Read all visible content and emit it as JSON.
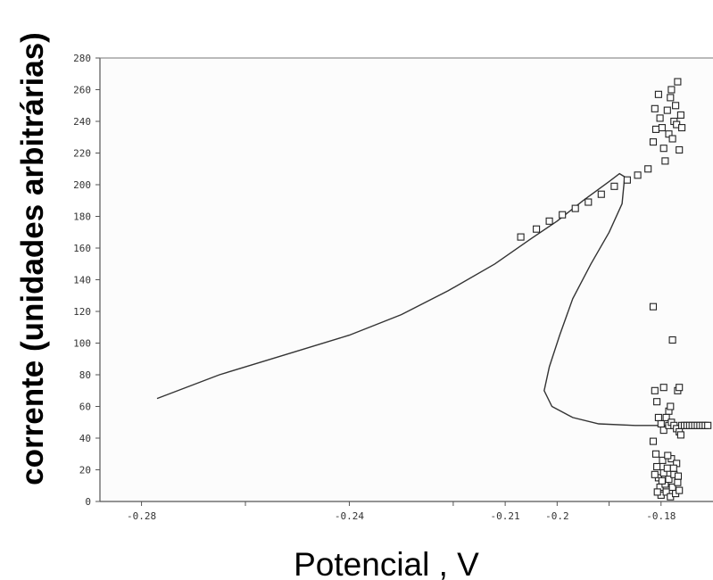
{
  "chart_data": {
    "type": "scatter",
    "title": "",
    "xlabel": "Potencial , V",
    "ylabel": "corrente (unidades arbitrárias)",
    "xlim": [
      -0.288,
      -0.17
    ],
    "ylim": [
      0,
      280
    ],
    "x_ticks": [
      {
        "value": -0.28,
        "label": "-0.28"
      },
      {
        "value": -0.26,
        "label": ""
      },
      {
        "value": -0.24,
        "label": "-0.24"
      },
      {
        "value": -0.22,
        "label": ""
      },
      {
        "value": -0.21,
        "label": "-0.21"
      },
      {
        "value": -0.2,
        "label": "-0.2"
      },
      {
        "value": -0.19,
        "label": ""
      },
      {
        "value": -0.18,
        "label": "-0.18"
      }
    ],
    "y_ticks": [
      {
        "value": 0,
        "label": "0"
      },
      {
        "value": 20,
        "label": "20"
      },
      {
        "value": 40,
        "label": "40"
      },
      {
        "value": 60,
        "label": "60"
      },
      {
        "value": 80,
        "label": "80"
      },
      {
        "value": 100,
        "label": "100"
      },
      {
        "value": 120,
        "label": "120"
      },
      {
        "value": 140,
        "label": "140"
      },
      {
        "value": 160,
        "label": "160"
      },
      {
        "value": 180,
        "label": "180"
      },
      {
        "value": 200,
        "label": "200"
      },
      {
        "value": 220,
        "label": "220"
      },
      {
        "value": 240,
        "label": "240"
      },
      {
        "value": 260,
        "label": "260"
      },
      {
        "value": 280,
        "label": "280"
      }
    ],
    "grid": false,
    "legend": "none",
    "series": [
      {
        "type": "line",
        "points": [
          [
            -0.277,
            65
          ],
          [
            -0.265,
            80
          ],
          [
            -0.252,
            93
          ],
          [
            -0.24,
            105
          ],
          [
            -0.23,
            118
          ],
          [
            -0.221,
            133
          ],
          [
            -0.212,
            150
          ],
          [
            -0.205,
            166
          ],
          [
            -0.2,
            177
          ],
          [
            -0.195,
            190
          ],
          [
            -0.19,
            202
          ],
          [
            -0.188,
            207
          ],
          [
            -0.187,
            205
          ],
          [
            -0.1875,
            188
          ],
          [
            -0.19,
            170
          ],
          [
            -0.1935,
            150
          ],
          [
            -0.197,
            128
          ],
          [
            -0.1995,
            105
          ],
          [
            -0.2015,
            85
          ],
          [
            -0.2025,
            70
          ],
          [
            -0.201,
            60
          ],
          [
            -0.197,
            53
          ],
          [
            -0.192,
            49
          ],
          [
            -0.185,
            48
          ],
          [
            -0.175,
            48
          ]
        ]
      },
      {
        "type": "scatter",
        "marker": "square-open",
        "points": [
          [
            -0.207,
            167
          ],
          [
            -0.204,
            172
          ],
          [
            -0.2015,
            177
          ],
          [
            -0.199,
            181
          ],
          [
            -0.1965,
            185
          ],
          [
            -0.194,
            189
          ],
          [
            -0.1915,
            194
          ],
          [
            -0.189,
            199
          ],
          [
            -0.1865,
            203
          ],
          [
            -0.1845,
            206
          ],
          [
            -0.1825,
            210
          ],
          [
            -0.1815,
            227
          ],
          [
            -0.181,
            235
          ],
          [
            -0.1812,
            248
          ],
          [
            -0.1805,
            257
          ],
          [
            -0.1802,
            242
          ],
          [
            -0.1798,
            236
          ],
          [
            -0.1795,
            223
          ],
          [
            -0.1792,
            215
          ],
          [
            -0.1788,
            247
          ],
          [
            -0.1785,
            232
          ],
          [
            -0.1782,
            255
          ],
          [
            -0.178,
            260
          ],
          [
            -0.1778,
            229
          ],
          [
            -0.1775,
            240
          ],
          [
            -0.1772,
            250
          ],
          [
            -0.177,
            238
          ],
          [
            -0.1768,
            265
          ],
          [
            -0.1765,
            222
          ],
          [
            -0.1762,
            244
          ],
          [
            -0.176,
            236
          ],
          [
            -0.1815,
            123
          ],
          [
            -0.1778,
            102
          ],
          [
            -0.1812,
            70
          ],
          [
            -0.1808,
            63
          ],
          [
            -0.1795,
            72
          ],
          [
            -0.1785,
            57
          ],
          [
            -0.1782,
            60
          ],
          [
            -0.1768,
            70
          ],
          [
            -0.1765,
            72
          ],
          [
            -0.1805,
            53
          ],
          [
            -0.18,
            49
          ],
          [
            -0.1795,
            45
          ],
          [
            -0.179,
            53
          ],
          [
            -0.1785,
            48
          ],
          [
            -0.178,
            50
          ],
          [
            -0.1775,
            48
          ],
          [
            -0.177,
            46
          ],
          [
            -0.1765,
            44
          ],
          [
            -0.1762,
            42
          ],
          [
            -0.176,
            48
          ],
          [
            -0.1755,
            48
          ],
          [
            -0.175,
            48
          ],
          [
            -0.1745,
            48
          ],
          [
            -0.174,
            48
          ],
          [
            -0.1735,
            48
          ],
          [
            -0.173,
            48
          ],
          [
            -0.1725,
            48
          ],
          [
            -0.172,
            48
          ],
          [
            -0.1715,
            48
          ],
          [
            -0.171,
            48
          ],
          [
            -0.1815,
            38
          ],
          [
            -0.181,
            30
          ],
          [
            -0.1808,
            22
          ],
          [
            -0.1805,
            15
          ],
          [
            -0.1802,
            9
          ],
          [
            -0.18,
            4
          ],
          [
            -0.1797,
            26
          ],
          [
            -0.1795,
            18
          ],
          [
            -0.1792,
            11
          ],
          [
            -0.179,
            6
          ],
          [
            -0.1788,
            21
          ],
          [
            -0.1785,
            14
          ],
          [
            -0.1782,
            3
          ],
          [
            -0.178,
            27
          ],
          [
            -0.1778,
            9
          ],
          [
            -0.1775,
            17
          ],
          [
            -0.1772,
            5
          ],
          [
            -0.177,
            24
          ],
          [
            -0.1768,
            12
          ],
          [
            -0.1765,
            7
          ],
          [
            -0.1812,
            17
          ],
          [
            -0.1807,
            6
          ],
          [
            -0.1798,
            13
          ],
          [
            -0.1787,
            29
          ],
          [
            -0.1776,
            21
          ],
          [
            -0.1767,
            16
          ]
        ]
      }
    ]
  }
}
